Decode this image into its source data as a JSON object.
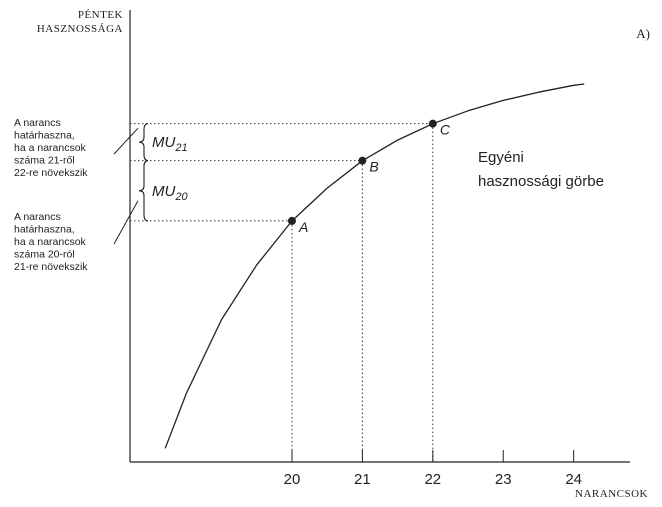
{
  "chart_data": {
    "type": "line",
    "panel_label": "A)",
    "ylabel_lines": [
      "PÉNTEK",
      "HASZNOSSÁGA"
    ],
    "xlabel": "NARANCSOK",
    "x_ticks": [
      "20",
      "21",
      "22",
      "23",
      "24"
    ],
    "curve_label_lines": [
      "Egyéni",
      "hasznossági görbe"
    ],
    "series": [
      {
        "x": [
          18.2,
          18.5,
          19.0,
          19.5,
          20.0,
          20.5,
          21.0,
          21.5,
          22.0,
          22.5,
          23.0,
          23.5,
          24.0,
          24.15
        ],
        "y": [
          0.5,
          2.5,
          5.2,
          7.2,
          8.8,
          10.0,
          11.0,
          11.75,
          12.35,
          12.82,
          13.2,
          13.5,
          13.75,
          13.8
        ]
      }
    ],
    "points": [
      {
        "label": "A",
        "x": 20,
        "y": 8.8
      },
      {
        "label": "B",
        "x": 21,
        "y": 11.0
      },
      {
        "label": "C",
        "x": 22,
        "y": 12.35
      }
    ],
    "marginal_utilities": [
      {
        "symbol": "MU",
        "subscript": "21",
        "from_point": "B",
        "to_point": "C",
        "note_lines": [
          "A narancs",
          "határhaszna,",
          "ha a narancsok",
          "száma 21-ről",
          "22-re növekszik"
        ]
      },
      {
        "symbol": "MU",
        "subscript": "20",
        "from_point": "A",
        "to_point": "B",
        "note_lines": [
          "A narancs",
          "határhaszna,",
          "ha a narancsok",
          "száma 20-ról",
          "21-re növekszik"
        ]
      }
    ],
    "xlim": [
      17.7,
      24.8
    ],
    "ylim": [
      0,
      16.5
    ]
  }
}
